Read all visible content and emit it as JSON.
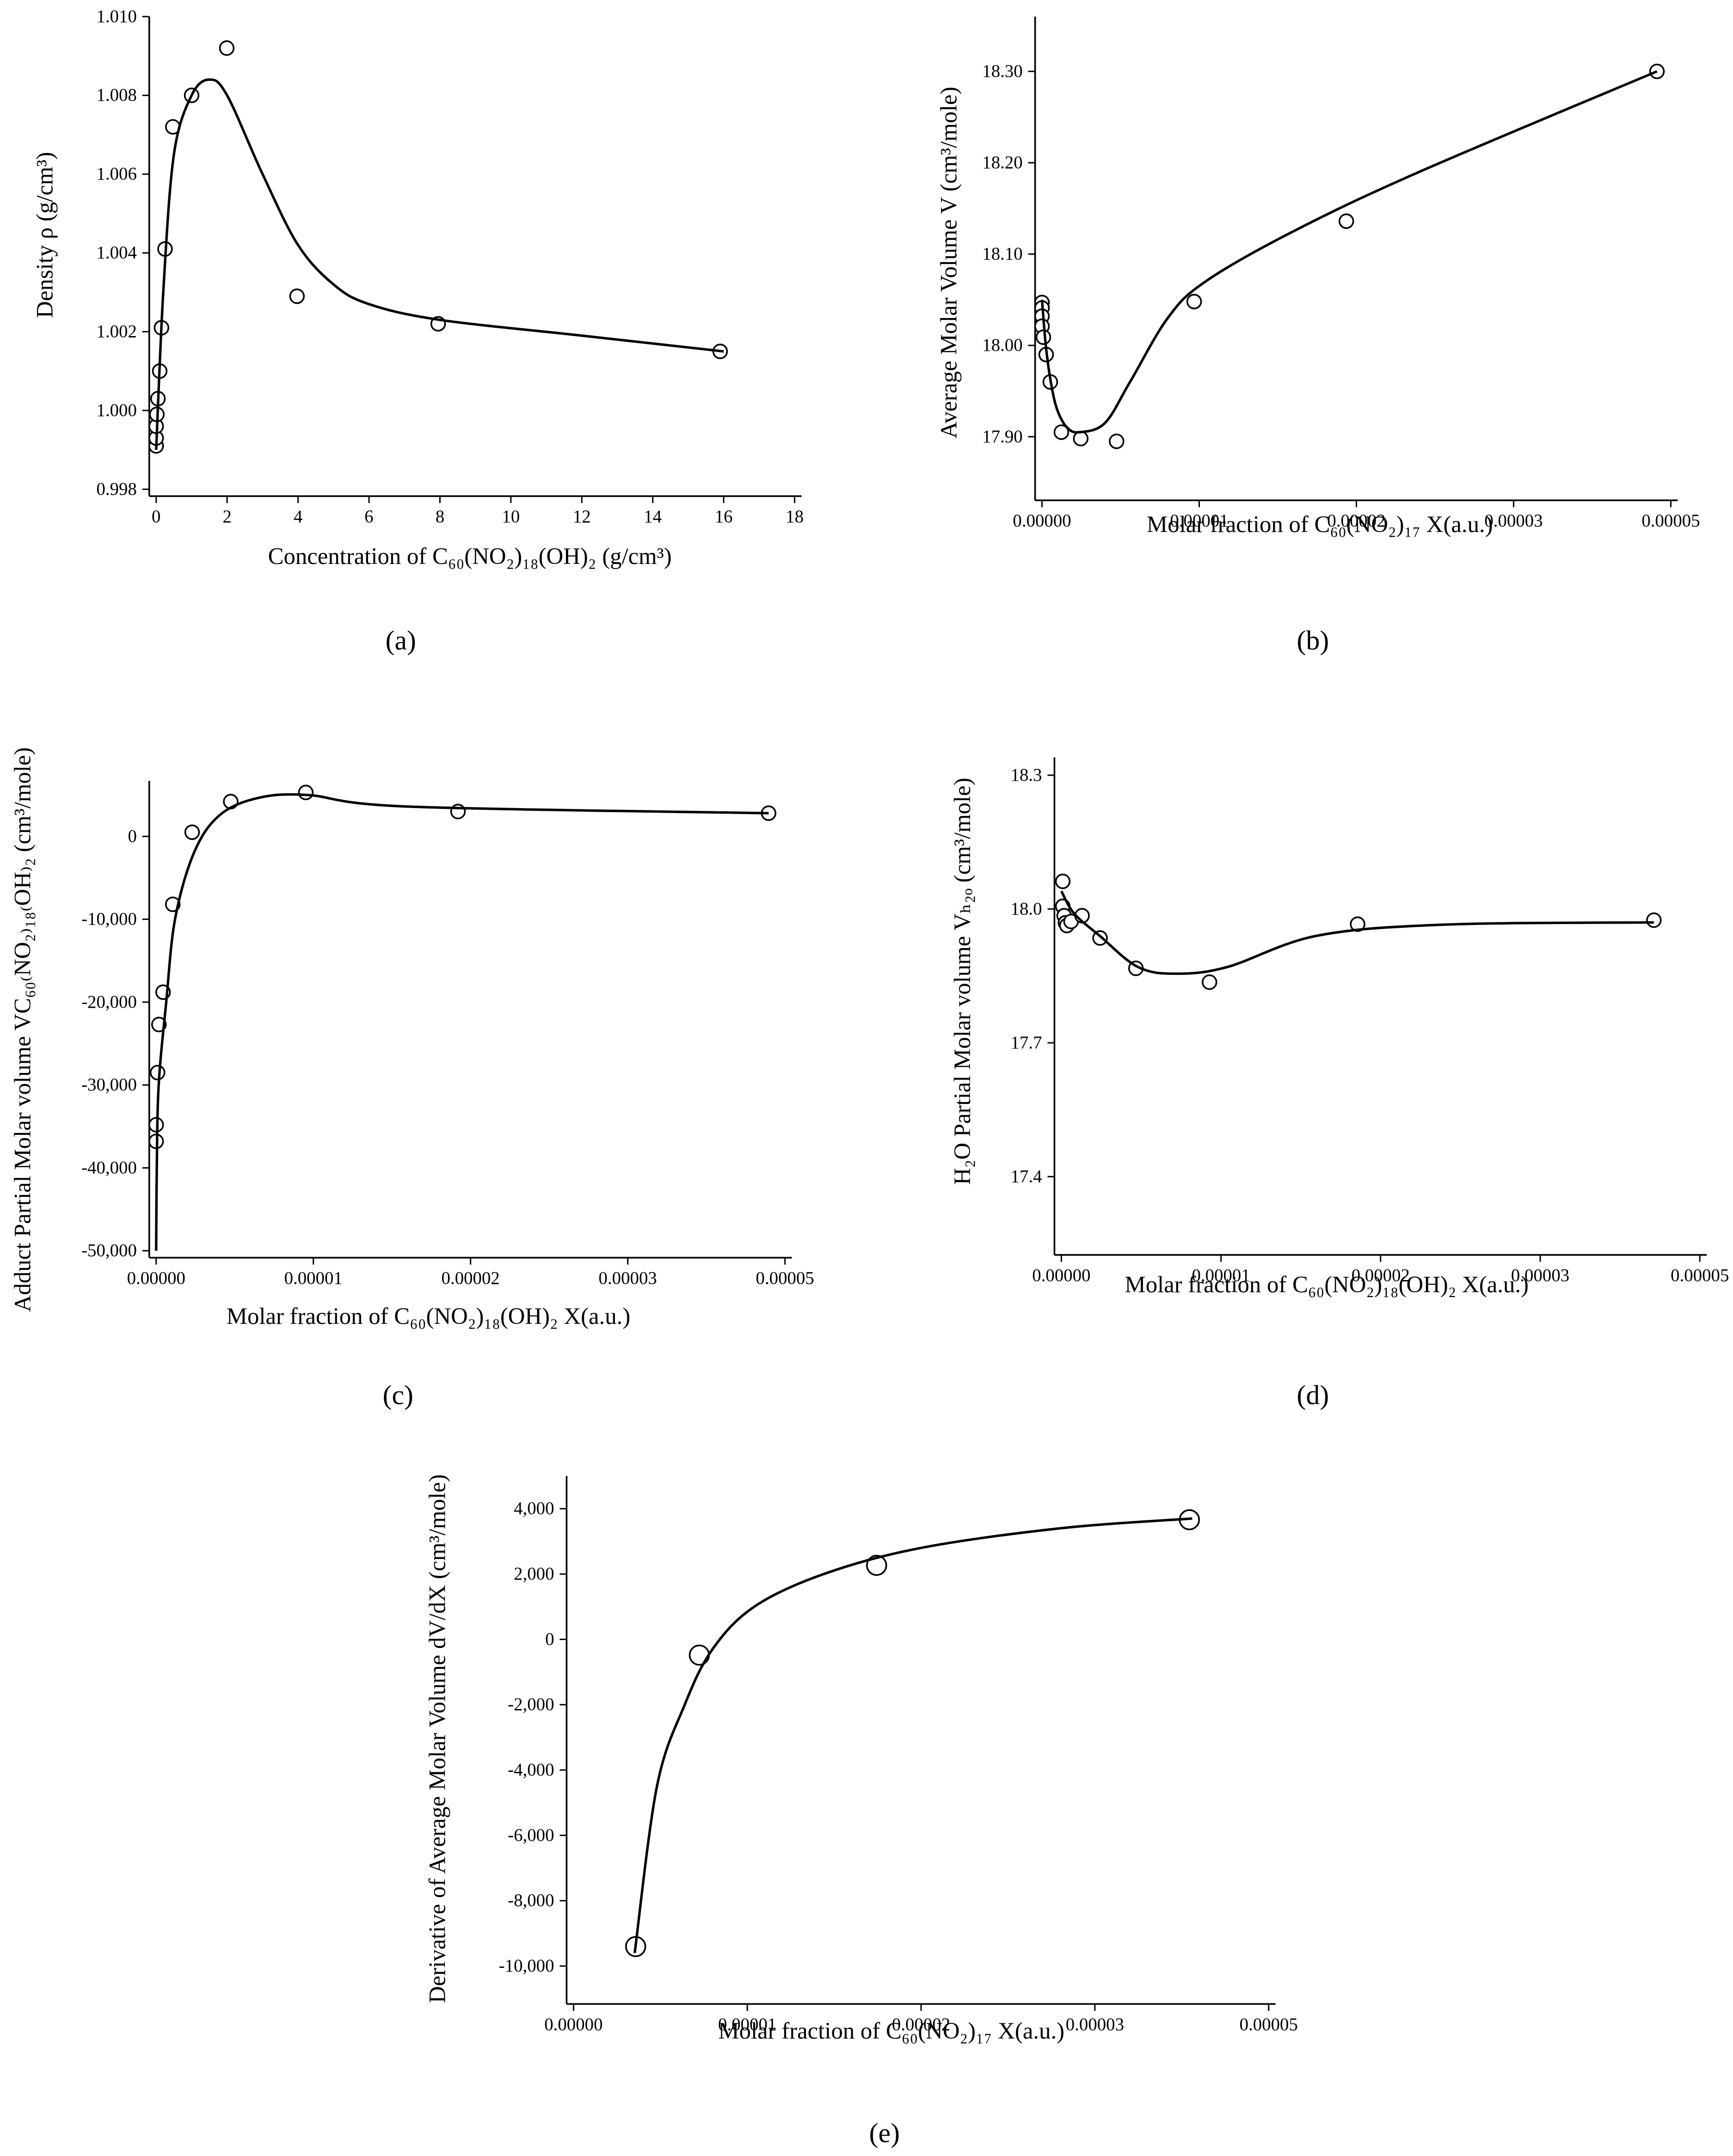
{
  "chart_data": [
    {
      "type": "scatter",
      "label": "(a)",
      "xlabel": "Concentration of C₆₀(NO₂)₁₈(OH)₂ (g/cm³)",
      "ylabel": "Density ρ (g/cm³)",
      "xlim": [
        0,
        18
      ],
      "ylim": [
        0.998,
        1.01
      ],
      "xticks": [
        0,
        2,
        4,
        6,
        8,
        10,
        12,
        14,
        16,
        18
      ],
      "yticks": [
        {
          "value": 0.998,
          "label": "0.998"
        },
        {
          "value": 1.0,
          "label": "1.000"
        },
        {
          "value": 1.002,
          "label": "1.002"
        },
        {
          "value": 1.004,
          "label": "1.004"
        },
        {
          "value": 1.006,
          "label": "1.006"
        },
        {
          "value": 1.008,
          "label": "1.008"
        },
        {
          "value": 1.01,
          "label": "1.010"
        }
      ],
      "series": [
        {
          "color": "#000000",
          "marker": "circle",
          "x": [
            0,
            0,
            0,
            0.02,
            0.05,
            0.1,
            0.15,
            0.25,
            0.47,
            1.0,
            1.99,
            3.97,
            7.95,
            15.9
          ],
          "values": [
            0.9991,
            0.9993,
            0.9996,
            0.9999,
            1.0003,
            1.001,
            1.0021,
            1.0041,
            1.0072,
            1.008,
            1.0092,
            1.0029,
            1.0022,
            1.0015
          ]
        },
        {
          "color": "#000000",
          "line": "smooth",
          "x": [
            0,
            0.2,
            0.5,
            1,
            1.5,
            2,
            3,
            4,
            5,
            6,
            8,
            12,
            16
          ],
          "values": [
            0.999,
            1.003,
            1.0065,
            1.008,
            1.0084,
            1.008,
            1.006,
            1.0042,
            1.0032,
            1.0027,
            1.0023,
            1.0019,
            1.0015
          ]
        }
      ]
    },
    {
      "type": "scatter",
      "label": "(b)",
      "xlabel": "Molar fraction of C₆₀(NO₂)₁₇ X(a.u.)",
      "ylabel": "Average Molar Volume V (cm³/mole)",
      "xlim": [
        0,
        5e-05
      ],
      "ylim": [
        17.838,
        18.36
      ],
      "xticks": [
        {
          "value": 0,
          "label": "0.00000"
        },
        {
          "value": 1.25e-05,
          "label": "0.00001"
        },
        {
          "value": 2.5e-05,
          "label": "0.00002"
        },
        {
          "value": 3.75e-05,
          "label": "0.00003"
        },
        {
          "value": 5e-05,
          "label": "0.00005"
        }
      ],
      "yticks": [
        {
          "value": 17.9,
          "label": "17.90"
        },
        {
          "value": 18.0,
          "label": "18.00"
        },
        {
          "value": 18.1,
          "label": "18.10"
        },
        {
          "value": 18.2,
          "label": "18.20"
        },
        {
          "value": 18.3,
          "label": "18.30"
        }
      ],
      "series": [
        {
          "color": "#000000",
          "marker": "circle",
          "x": [
            0,
            0,
            0,
            0,
            1.1e-07,
            3.3e-07,
            6.6e-07,
            1.54e-06,
            3.08e-06,
            5.93e-06,
            1.21e-05,
            2.42e-05,
            4.89e-05
          ],
          "values": [
            18.047,
            18.041,
            18.032,
            18.021,
            18.009,
            17.99,
            17.96,
            17.905,
            17.898,
            17.895,
            18.048,
            18.136,
            18.3
          ]
        },
        {
          "color": "#000000",
          "line": "smooth",
          "x": [
            0,
            3e-07,
            7e-07,
            1.2e-06,
            2e-06,
            3e-06,
            5e-06,
            7e-06,
            1e-05,
            1.3e-05,
            2e-05,
            3e-05,
            4.89e-05
          ],
          "values": [
            18.05,
            18.0,
            17.96,
            17.93,
            17.91,
            17.905,
            17.915,
            17.96,
            18.03,
            18.07,
            18.125,
            18.19,
            18.3
          ]
        }
      ]
    },
    {
      "type": "scatter",
      "label": "(c)",
      "xlabel": "Molar fraction of C₆₀(NO₂)₁₈(OH)₂ X(a.u.)",
      "ylabel": "Adduct Partial Molar volume VC₆₀₍NO₂₎₁₈₍OH₎₂ (cm³/mole)",
      "xlim": [
        0,
        5e-05
      ],
      "ylim": [
        -50000,
        6700
      ],
      "xticks": [
        {
          "value": 0,
          "label": "0.00000"
        },
        {
          "value": 1.25e-05,
          "label": "0.00001"
        },
        {
          "value": 2.5e-05,
          "label": "0.00002"
        },
        {
          "value": 3.75e-05,
          "label": "0.00003"
        },
        {
          "value": 5e-05,
          "label": "0.00005"
        }
      ],
      "yticks": [
        {
          "value": -50000,
          "label": "-50,000"
        },
        {
          "value": -40000,
          "label": "-40,000"
        },
        {
          "value": -30000,
          "label": "-30,000"
        },
        {
          "value": -20000,
          "label": "-20,000"
        },
        {
          "value": -10000,
          "label": "-10,000"
        },
        0
      ],
      "series": [
        {
          "color": "#000000",
          "marker": "circle",
          "x": [
            0,
            0,
            1.1e-07,
            2.2e-07,
            5.5e-07,
            1.32e-06,
            2.86e-06,
            5.93e-06,
            1.19e-05,
            2.4e-05,
            4.87e-05
          ],
          "values": [
            -36800,
            -34800,
            -28500,
            -22700,
            -18800,
            -8200,
            500,
            4200,
            5300,
            3000,
            2800
          ]
        },
        {
          "color": "#000000",
          "line": "smooth",
          "x": [
            0,
            5e-08,
            2e-07,
            8e-07,
            1.5e-06,
            3e-06,
            5e-06,
            8e-06,
            1.2e-05,
            2e-05,
            4.87e-05
          ],
          "values": [
            -50000,
            -40000,
            -30000,
            -20000,
            -10000,
            -2000,
            2500,
            4600,
            5000,
            3600,
            2800
          ]
        }
      ]
    },
    {
      "type": "scatter",
      "label": "(d)",
      "xlabel": "Molar fraction of C₆₀(NO₂)₁₈(OH)₂ X(a.u.)",
      "ylabel": "H₂O Partial Molar volume Vₕ₂ₒ (cm³/mole)",
      "xlim": [
        0,
        5e-05
      ],
      "ylim": [
        17.24,
        18.34
      ],
      "xticks": [
        {
          "value": 0,
          "label": "0.00000"
        },
        {
          "value": 1.25e-05,
          "label": "0.00001"
        },
        {
          "value": 2.5e-05,
          "label": "0.00002"
        },
        {
          "value": 3.75e-05,
          "label": "0.00003"
        },
        {
          "value": 5e-05,
          "label": "0.00005"
        }
      ],
      "yticks": [
        17.4,
        17.7,
        {
          "value": 18.0,
          "label": "18.0"
        },
        18.3
      ],
      "series": [
        {
          "color": "#000000",
          "marker": "circle",
          "x": [
            1.1e-07,
            1.1e-07,
            2.2e-07,
            3.2e-07,
            4.3e-07,
            7.6e-07,
            1.62e-06,
            3.03e-06,
            5.84e-06,
            1.16e-05,
            2.32e-05,
            4.64e-05
          ],
          "values": [
            18.062,
            18.006,
            17.985,
            17.969,
            17.963,
            17.972,
            17.985,
            17.935,
            17.867,
            17.836,
            17.966,
            17.975
          ]
        },
        {
          "color": "#000000",
          "line": "smooth",
          "x": [
            0,
            1e-06,
            3e-06,
            6e-06,
            9e-06,
            1.3e-05,
            2e-05,
            3e-05,
            4.64e-05
          ],
          "values": [
            18.04,
            17.99,
            17.94,
            17.87,
            17.855,
            17.87,
            17.94,
            17.965,
            17.97
          ]
        }
      ]
    },
    {
      "type": "scatter",
      "label": "(e)",
      "xlabel": "Molar fraction of C₆₀(NO₂)₁₇ X(a.u.)",
      "ylabel": "Derivative of Average Molar Volume dV/dX (cm³/mole)",
      "xlim": [
        0,
        5e-05
      ],
      "ylim": [
        -10950,
        5000
      ],
      "xticks": [
        {
          "value": 0,
          "label": "0.00000"
        },
        {
          "value": 1.25e-05,
          "label": "0.00001"
        },
        {
          "value": 2.5e-05,
          "label": "0.00002"
        },
        {
          "value": 3.75e-05,
          "label": "0.00003"
        },
        {
          "value": 5e-05,
          "label": "0.00005"
        }
      ],
      "yticks": [
        {
          "value": -10000,
          "label": "-10,000"
        },
        {
          "value": -8000,
          "label": "-8,000"
        },
        {
          "value": -6000,
          "label": "-6,000"
        },
        {
          "value": -4000,
          "label": "-4,000"
        },
        {
          "value": -2000,
          "label": "-2,000"
        },
        0,
        {
          "value": 2000,
          "label": "2,000"
        },
        {
          "value": 4000,
          "label": "4,000"
        }
      ],
      "series": [
        {
          "color": "#000000",
          "marker": "circle",
          "x": [
            4.47e-06,
            9.05e-06,
            2.18e-05,
            4.43e-05
          ],
          "values": [
            -9404,
            -482,
            2266,
            3662
          ]
        },
        {
          "color": "#000000",
          "line": "smooth",
          "x": [
            4.4e-06,
            6e-06,
            8e-06,
            1e-05,
            1.3e-05,
            1.8e-05,
            2.5e-05,
            3.5e-05,
            4.45e-05
          ],
          "values": [
            -9600,
            -4500,
            -2000,
            -300,
            1000,
            2000,
            2800,
            3400,
            3700
          ]
        }
      ]
    }
  ]
}
